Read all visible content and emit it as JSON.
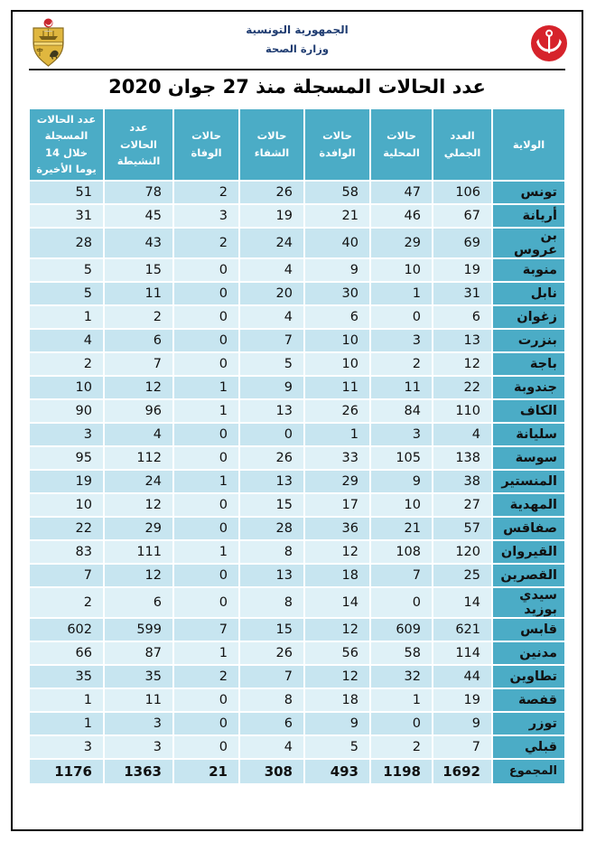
{
  "header": {
    "republic": "الجمهورية التونسية",
    "ministry": "وزارة الصحة"
  },
  "title": "عدد الحالات المسجلة منذ 27 جوان 2020",
  "colors": {
    "header_teal": "#4bacc6",
    "band_dark": "#c7e5f0",
    "band_light": "#dff1f7",
    "navy_text": "#1f3c71",
    "logo_red": "#d6232b",
    "coat_gold": "#e0b73f"
  },
  "table": {
    "columns": [
      {
        "key": "last14",
        "label": "عدد الحالات المسجلة خلال 14 يوما الأخيرة"
      },
      {
        "key": "active",
        "label": "عدد الحالات النشيطة"
      },
      {
        "key": "deaths",
        "label": "حالات الوفاة"
      },
      {
        "key": "recovered",
        "label": "حالات الشفاء"
      },
      {
        "key": "imported",
        "label": "حالات الوافدة"
      },
      {
        "key": "local",
        "label": "حالات المحلية"
      },
      {
        "key": "total",
        "label": "العدد الجملي"
      },
      {
        "key": "governorate",
        "label": "الولاية"
      }
    ],
    "rows": [
      {
        "governorate": "تونس",
        "total": 106,
        "local": 47,
        "imported": 58,
        "recovered": 26,
        "deaths": 2,
        "active": 78,
        "last14": 51
      },
      {
        "governorate": "أريانة",
        "total": 67,
        "local": 46,
        "imported": 21,
        "recovered": 19,
        "deaths": 3,
        "active": 45,
        "last14": 31
      },
      {
        "governorate": "بن عروس",
        "total": 69,
        "local": 29,
        "imported": 40,
        "recovered": 24,
        "deaths": 2,
        "active": 43,
        "last14": 28
      },
      {
        "governorate": "منوبة",
        "total": 19,
        "local": 10,
        "imported": 9,
        "recovered": 4,
        "deaths": 0,
        "active": 15,
        "last14": 5
      },
      {
        "governorate": "نابل",
        "total": 31,
        "local": 1,
        "imported": 30,
        "recovered": 20,
        "deaths": 0,
        "active": 11,
        "last14": 5
      },
      {
        "governorate": "زغوان",
        "total": 6,
        "local": 0,
        "imported": 6,
        "recovered": 4,
        "deaths": 0,
        "active": 2,
        "last14": 1
      },
      {
        "governorate": "بنزرت",
        "total": 13,
        "local": 3,
        "imported": 10,
        "recovered": 7,
        "deaths": 0,
        "active": 6,
        "last14": 4
      },
      {
        "governorate": "باجة",
        "total": 12,
        "local": 2,
        "imported": 10,
        "recovered": 5,
        "deaths": 0,
        "active": 7,
        "last14": 2
      },
      {
        "governorate": "جندوبة",
        "total": 22,
        "local": 11,
        "imported": 11,
        "recovered": 9,
        "deaths": 1,
        "active": 12,
        "last14": 10
      },
      {
        "governorate": "الكاف",
        "total": 110,
        "local": 84,
        "imported": 26,
        "recovered": 13,
        "deaths": 1,
        "active": 96,
        "last14": 90
      },
      {
        "governorate": "سليانة",
        "total": 4,
        "local": 3,
        "imported": 1,
        "recovered": 0,
        "deaths": 0,
        "active": 4,
        "last14": 3
      },
      {
        "governorate": "سوسة",
        "total": 138,
        "local": 105,
        "imported": 33,
        "recovered": 26,
        "deaths": 0,
        "active": 112,
        "last14": 95
      },
      {
        "governorate": "المنستير",
        "total": 38,
        "local": 9,
        "imported": 29,
        "recovered": 13,
        "deaths": 1,
        "active": 24,
        "last14": 19
      },
      {
        "governorate": "المهدية",
        "total": 27,
        "local": 10,
        "imported": 17,
        "recovered": 15,
        "deaths": 0,
        "active": 12,
        "last14": 10
      },
      {
        "governorate": "صفاقس",
        "total": 57,
        "local": 21,
        "imported": 36,
        "recovered": 28,
        "deaths": 0,
        "active": 29,
        "last14": 22
      },
      {
        "governorate": "القيروان",
        "total": 120,
        "local": 108,
        "imported": 12,
        "recovered": 8,
        "deaths": 1,
        "active": 111,
        "last14": 83
      },
      {
        "governorate": "القصرين",
        "total": 25,
        "local": 7,
        "imported": 18,
        "recovered": 13,
        "deaths": 0,
        "active": 12,
        "last14": 7
      },
      {
        "governorate": "سيدي بوزيد",
        "total": 14,
        "local": 0,
        "imported": 14,
        "recovered": 8,
        "deaths": 0,
        "active": 6,
        "last14": 2
      },
      {
        "governorate": "قابس",
        "total": 621,
        "local": 609,
        "imported": 12,
        "recovered": 15,
        "deaths": 7,
        "active": 599,
        "last14": 602
      },
      {
        "governorate": "مدنين",
        "total": 114,
        "local": 58,
        "imported": 56,
        "recovered": 26,
        "deaths": 1,
        "active": 87,
        "last14": 66
      },
      {
        "governorate": "تطاوين",
        "total": 44,
        "local": 32,
        "imported": 12,
        "recovered": 7,
        "deaths": 2,
        "active": 35,
        "last14": 35
      },
      {
        "governorate": "قفصة",
        "total": 19,
        "local": 1,
        "imported": 18,
        "recovered": 8,
        "deaths": 0,
        "active": 11,
        "last14": 1
      },
      {
        "governorate": "توزر",
        "total": 9,
        "local": 0,
        "imported": 9,
        "recovered": 6,
        "deaths": 0,
        "active": 3,
        "last14": 1
      },
      {
        "governorate": "قبلي",
        "total": 7,
        "local": 2,
        "imported": 5,
        "recovered": 4,
        "deaths": 0,
        "active": 3,
        "last14": 3
      }
    ],
    "total": {
      "label": "المجموع",
      "total": 1692,
      "local": 1198,
      "imported": 493,
      "recovered": 308,
      "deaths": 21,
      "active": 1363,
      "last14": 1176
    }
  }
}
